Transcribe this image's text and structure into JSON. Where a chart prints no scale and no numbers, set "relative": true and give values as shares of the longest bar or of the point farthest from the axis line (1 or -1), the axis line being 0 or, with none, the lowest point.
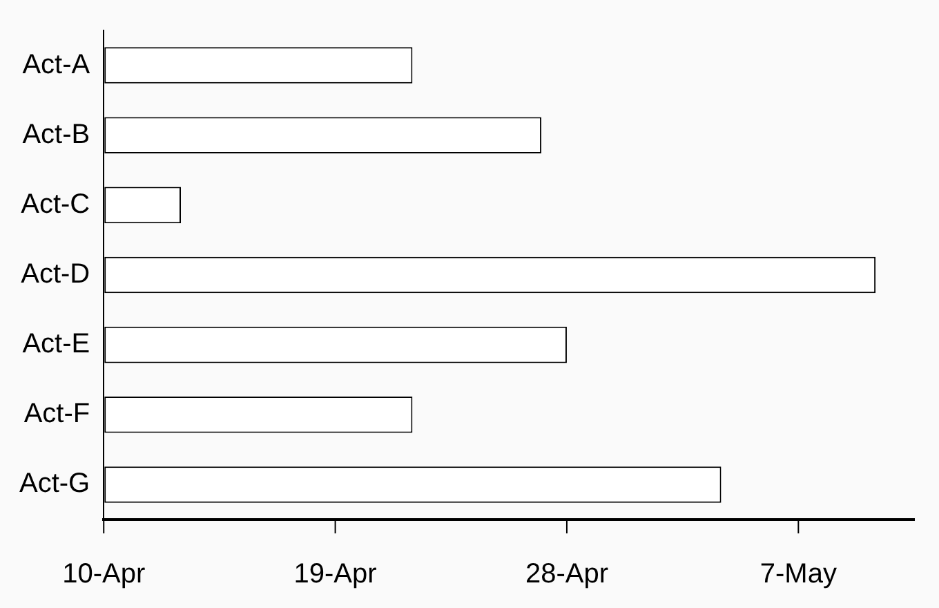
{
  "chart_data": {
    "type": "bar",
    "orientation": "horizontal",
    "relative": true,
    "categories": [
      "Act-A",
      "Act-B",
      "Act-C",
      "Act-D",
      "Act-E",
      "Act-F",
      "Act-G"
    ],
    "values": [
      0.4,
      0.567,
      0.1,
      1,
      0.6,
      0.4,
      0.8
    ],
    "color": "#ffffff",
    "annotations": [
      "10-Apr",
      "19-Apr",
      "28-Apr",
      "7-May"
    ],
    "grid": false,
    "legend": false
  }
}
